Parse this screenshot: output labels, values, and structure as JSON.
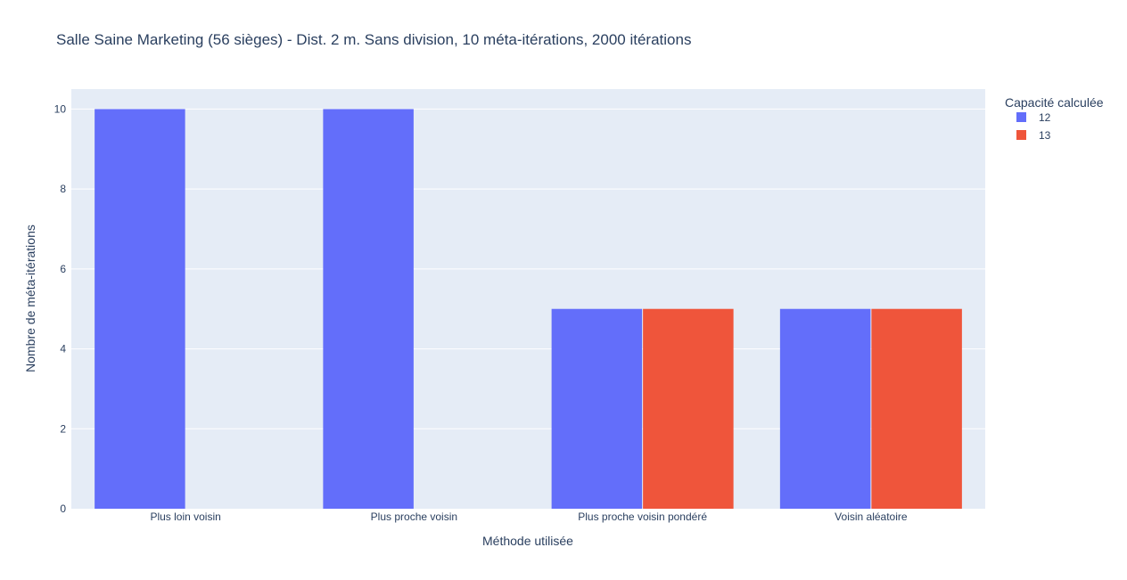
{
  "chart_data": {
    "type": "bar",
    "title": "Salle Saine Marketing (56 sièges) - Dist. 2 m. Sans division, 10 méta-itérations, 2000 itérations",
    "xlabel": "Méthode utilisée",
    "ylabel": "Nombre de méta-itérations",
    "categories": [
      "Plus loin voisin",
      "Plus proche voisin",
      "Plus proche voisin pondéré",
      "Voisin aléatoire"
    ],
    "series": [
      {
        "name": "12",
        "values": [
          10,
          10,
          5,
          5
        ],
        "color": "#636efa"
      },
      {
        "name": "13",
        "values": [
          0,
          0,
          5,
          5
        ],
        "color": "#ef553b"
      }
    ],
    "legend_title": "Capacité calculée",
    "legend_position": "top-right",
    "ylim": [
      0,
      10.5
    ],
    "yticks": [
      0,
      2,
      4,
      6,
      8,
      10
    ],
    "grid": true,
    "plot_bgcolor": "#e5ecf6"
  }
}
